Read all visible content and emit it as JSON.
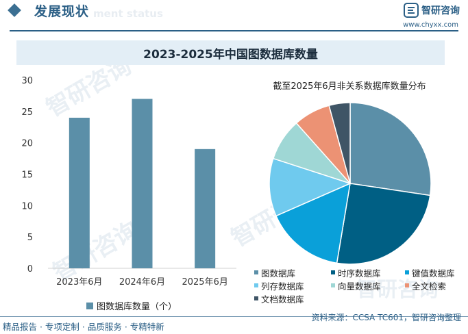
{
  "header": {
    "section_title": "发展现状",
    "section_subtitle": "ment status",
    "brand_name": "智研咨询",
    "brand_url": "www.chyxx.com"
  },
  "main_title": "2023-2025年中国图数据库数量",
  "chart_data": [
    {
      "type": "bar",
      "title": "",
      "categories": [
        "2023年6月",
        "2024年6月",
        "2025年6月"
      ],
      "series": [
        {
          "name": "图数据库数量（个）",
          "values": [
            24,
            27,
            19
          ],
          "color": "#5b8fa8"
        }
      ],
      "ylim": [
        0,
        30
      ],
      "yticks": [
        0,
        5,
        10,
        15,
        20,
        25,
        30
      ],
      "grid": false,
      "legend": "bottom"
    },
    {
      "type": "pie",
      "title": "截至2025年6月非关系数据库数量分布",
      "labels": [
        "图数据库",
        "时序数据库",
        "键值数据库",
        "列存数据库",
        "向量数据库",
        "全文检索",
        "文档数据库"
      ],
      "values": [
        26,
        24,
        15,
        11,
        8,
        7,
        4
      ],
      "colors": [
        "#5b8fa8",
        "#005f84",
        "#0aa0d9",
        "#6fcaee",
        "#9fd7d5",
        "#ec9274",
        "#3f5566"
      ],
      "legend": "bottom"
    }
  ],
  "footer": {
    "left_text": "精品报告 · 专项定制 · 品质服务 · 专精特新",
    "source": "资料来源：CCSA TC601，智研咨询整理"
  },
  "watermark": {
    "text": "智研咨询"
  }
}
